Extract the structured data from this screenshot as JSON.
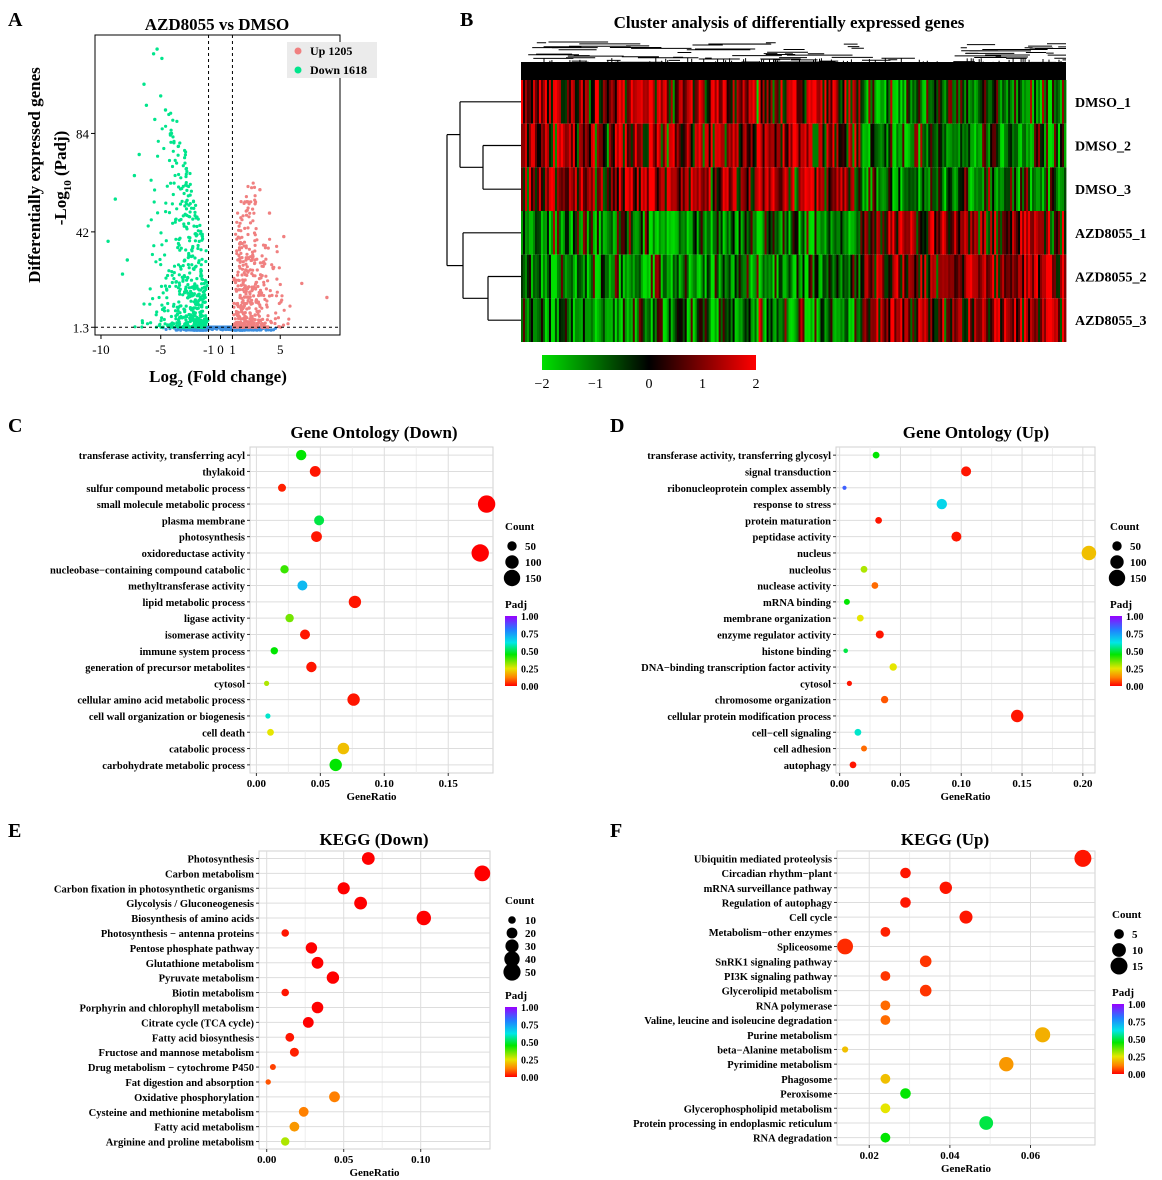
{
  "chart_data": [
    {
      "panel": "A",
      "type": "scatter",
      "title": "AZD8055 vs DMSO",
      "xlabel_main": "Log",
      "xlabel_sub": "2",
      "xlabel_rest": " (Fold change)",
      "ylabel_outer": "Differentially expressed genes",
      "ylabel_inner_main": "-Log",
      "ylabel_inner_sub": "10",
      "ylabel_inner_rest": " (Padj)",
      "x_ticks": [
        "-10",
        "-5",
        "-1",
        "0",
        "1",
        "5"
      ],
      "x_tick_values": [
        -10,
        -5,
        -1,
        0,
        1,
        5
      ],
      "y_ticks": [
        "1.3",
        "42",
        "84"
      ],
      "y_tick_values": [
        1.3,
        42,
        84
      ],
      "xlim": [
        -10.5,
        10
      ],
      "ylim": [
        -2,
        126
      ],
      "threshold_y": 1.3,
      "threshold_x": [
        -1,
        1
      ],
      "legend": [
        {
          "label": "Up 1205",
          "color": "#F08080"
        },
        {
          "label": "Down 1618",
          "color": "#00E58C"
        }
      ],
      "colors": {
        "up": "#F08080",
        "down": "#00E58C",
        "ns": "#3C8FE0"
      },
      "up_count": 1205,
      "down_count": 1618
    },
    {
      "panel": "B",
      "type": "heatmap",
      "title": "Cluster analysis of differentially expressed genes",
      "rows": [
        "DMSO_1",
        "DMSO_2",
        "DMSO_3",
        "AZD8055_1",
        "AZD8055_2",
        "AZD8055_3"
      ],
      "colorbar_ticks": [
        "−2",
        "−1",
        "0",
        "1",
        "2"
      ],
      "colorbar_values": [
        -2,
        -1,
        0,
        1,
        2
      ],
      "colors": {
        "low": "#00E000",
        "mid": "#000000",
        "high": "#FF0000"
      }
    },
    {
      "panel": "C",
      "type": "scatter",
      "title": "Gene Ontology (Down)",
      "xlabel": "GeneRatio",
      "x_ticks": [
        "0.00",
        "0.05",
        "0.10",
        "0.15"
      ],
      "x_tick_values": [
        0,
        0.05,
        0.1,
        0.15
      ],
      "xlim": [
        -0.005,
        0.185
      ],
      "size_legend_title": "Count",
      "size_legend": [
        "50",
        "100",
        "150"
      ],
      "size_legend_values": [
        50,
        100,
        150
      ],
      "size_max": 180,
      "color_legend_title": "Padj",
      "color_legend_ticks": [
        "1.00",
        "0.75",
        "0.50",
        "0.25",
        "0.00"
      ],
      "categories": [
        "transferase activity, transferring acyl",
        "thylakoid",
        "sulfur compound metabolic process",
        "small molecule metabolic process",
        "plasma membrane",
        "photosynthesis",
        "oxidoreductase activity",
        "nucleobase−containing compound catabolic",
        "methyltransferase activity",
        "lipid metabolic process",
        "ligase activity",
        "isomerase activity",
        "immune system process",
        "generation of precursor metabolites",
        "cytosol",
        "cellular amino acid metabolic process",
        "cell wall organization or biogenesis",
        "cell death",
        "catabolic process",
        "carbohydrate metabolic process"
      ],
      "gene_ratio": [
        0.035,
        0.046,
        0.02,
        0.18,
        0.049,
        0.047,
        0.175,
        0.022,
        0.036,
        0.077,
        0.026,
        0.038,
        0.014,
        0.043,
        0.008,
        0.076,
        0.009,
        0.011,
        0.068,
        0.062
      ],
      "count": [
        60,
        65,
        35,
        170,
        55,
        65,
        170,
        40,
        55,
        85,
        40,
        55,
        30,
        60,
        15,
        85,
        15,
        25,
        75,
        85
      ],
      "padj": [
        0.45,
        0.02,
        0.03,
        0.0,
        0.5,
        0.02,
        0.0,
        0.4,
        0.7,
        0.02,
        0.35,
        0.02,
        0.45,
        0.02,
        0.3,
        0.02,
        0.6,
        0.25,
        0.2,
        0.45
      ]
    },
    {
      "panel": "D",
      "type": "scatter",
      "title": "Gene Ontology (Up)",
      "xlabel": "GeneRatio",
      "x_ticks": [
        "0.00",
        "0.05",
        "0.10",
        "0.15",
        "0.20"
      ],
      "x_tick_values": [
        0,
        0.05,
        0.1,
        0.15,
        0.2
      ],
      "xlim": [
        -0.003,
        0.21
      ],
      "size_legend_title": "Count",
      "size_legend": [
        "50",
        "100",
        "150"
      ],
      "size_legend_values": [
        50,
        100,
        150
      ],
      "size_max": 180,
      "color_legend_title": "Padj",
      "color_legend_ticks": [
        "1.00",
        "0.75",
        "0.50",
        "0.25",
        "0.00"
      ],
      "categories": [
        "transferase activity, transferring glycosyl",
        "signal transduction",
        "ribonucleoprotein complex assembly",
        "response to stress",
        "protein maturation",
        "peptidase activity",
        "nucleus",
        "nucleolus",
        "nuclease activity",
        "mRNA binding",
        "membrane organization",
        "enzyme regulator activity",
        "histone binding",
        "DNA−binding transcription factor activity",
        "cytosol",
        "chromosome organization",
        "cellular protein modification process",
        "cell−cell signaling",
        "cell adhesion",
        "autophagy"
      ],
      "gene_ratio": [
        0.03,
        0.104,
        0.004,
        0.084,
        0.032,
        0.096,
        0.205,
        0.02,
        0.029,
        0.006,
        0.017,
        0.033,
        0.005,
        0.044,
        0.008,
        0.037,
        0.146,
        0.015,
        0.02,
        0.011
      ],
      "count": [
        25,
        55,
        10,
        60,
        25,
        55,
        120,
        25,
        25,
        20,
        25,
        35,
        12,
        30,
        15,
        30,
        85,
        25,
        20,
        25
      ],
      "padj": [
        0.45,
        0.02,
        0.85,
        0.65,
        0.02,
        0.02,
        0.2,
        0.3,
        0.1,
        0.45,
        0.25,
        0.02,
        0.5,
        0.25,
        0.02,
        0.08,
        0.02,
        0.6,
        0.1,
        0.02
      ]
    },
    {
      "panel": "E",
      "type": "scatter",
      "title": "KEGG (Down)",
      "xlabel": "GeneRatio",
      "x_ticks": [
        "0.00",
        "0.05",
        "0.10"
      ],
      "x_tick_values": [
        0,
        0.05,
        0.1
      ],
      "xlim": [
        -0.005,
        0.145
      ],
      "size_legend_title": "Count",
      "size_legend": [
        "10",
        "20",
        "30",
        "40",
        "50"
      ],
      "size_legend_values": [
        10,
        20,
        30,
        40,
        50
      ],
      "size_max": 55,
      "color_legend_title": "Padj",
      "color_legend_ticks": [
        "1.00",
        "0.75",
        "0.50",
        "0.25",
        "0.00"
      ],
      "categories": [
        "Photosynthesis",
        "Carbon metabolism",
        "Carbon fixation in photosynthetic organisms",
        "Glycolysis / Gluconeogenesis",
        "Biosynthesis of amino acids",
        "Photosynthesis − antenna proteins",
        "Pentose phosphate pathway",
        "Glutathione metabolism",
        "Pyruvate metabolism",
        "Biotin metabolism",
        "Porphyrin and chlorophyll metabolism",
        "Citrate cycle (TCA cycle)",
        "Fatty acid biosynthesis",
        "Fructose and mannose metabolism",
        "Drug metabolism − cytochrome P450",
        "Fat digestion and absorption",
        "Oxidative phosphorylation",
        "Cysteine and methionine metabolism",
        "Fatty acid metabolism",
        "Arginine and proline metabolism"
      ],
      "gene_ratio": [
        0.066,
        0.14,
        0.05,
        0.061,
        0.102,
        0.012,
        0.029,
        0.033,
        0.043,
        0.012,
        0.033,
        0.027,
        0.015,
        0.018,
        0.004,
        0.001,
        0.044,
        0.024,
        0.018,
        0.012
      ],
      "count": [
        28,
        42,
        25,
        28,
        35,
        10,
        22,
        24,
        26,
        10,
        23,
        20,
        13,
        14,
        6,
        5,
        20,
        16,
        16,
        12
      ],
      "padj": [
        0.0,
        0.0,
        0.0,
        0.0,
        0.0,
        0.02,
        0.0,
        0.0,
        0.0,
        0.02,
        0.0,
        0.0,
        0.02,
        0.03,
        0.06,
        0.08,
        0.12,
        0.12,
        0.15,
        0.3
      ]
    },
    {
      "panel": "F",
      "type": "scatter",
      "title": "KEGG (Up)",
      "xlabel": "GeneRatio",
      "x_ticks": [
        "0.02",
        "0.04",
        "0.06"
      ],
      "x_tick_values": [
        0.02,
        0.04,
        0.06
      ],
      "xlim": [
        0.012,
        0.076
      ],
      "size_legend_title": "Count",
      "size_legend": [
        "5",
        "10",
        "15"
      ],
      "size_legend_values": [
        5,
        10,
        15
      ],
      "size_max": 17,
      "color_legend_title": "Padj",
      "color_legend_ticks": [
        "1.00",
        "0.75",
        "0.50",
        "0.25",
        "0.00"
      ],
      "categories": [
        "Ubiquitin mediated proteolysis",
        "Circadian rhythm−plant",
        "mRNA surveillance pathway",
        "Regulation of autophagy",
        "Cell cycle",
        "Metabolism−other enzymes",
        "Spliceosome",
        "SnRK1 signaling pathway",
        "PI3K signaling pathway",
        "Glycerolipid metabolism",
        "RNA polymerase",
        "Valine, leucine and isoleucine degradation",
        "Purine metabolism",
        "beta−Alanine metabolism",
        "Pyrimidine metabolism",
        "Phagosome",
        "Peroxisome",
        "Glycerophospholipid metabolism",
        "Protein processing in endoplasmic reticulum",
        "RNA degradation"
      ],
      "gene_ratio": [
        0.073,
        0.029,
        0.039,
        0.029,
        0.044,
        0.024,
        0.014,
        0.034,
        0.024,
        0.034,
        0.024,
        0.024,
        0.063,
        0.014,
        0.054,
        0.024,
        0.029,
        0.024,
        0.049,
        0.024
      ],
      "count": [
        15,
        6,
        8,
        6,
        9,
        5,
        13,
        7,
        5,
        7,
        5,
        5,
        12,
        2,
        11,
        5,
        6,
        5,
        10,
        5
      ],
      "padj": [
        0.02,
        0.02,
        0.02,
        0.02,
        0.02,
        0.03,
        0.04,
        0.05,
        0.05,
        0.05,
        0.1,
        0.1,
        0.18,
        0.2,
        0.15,
        0.2,
        0.45,
        0.25,
        0.5,
        0.45
      ]
    }
  ]
}
